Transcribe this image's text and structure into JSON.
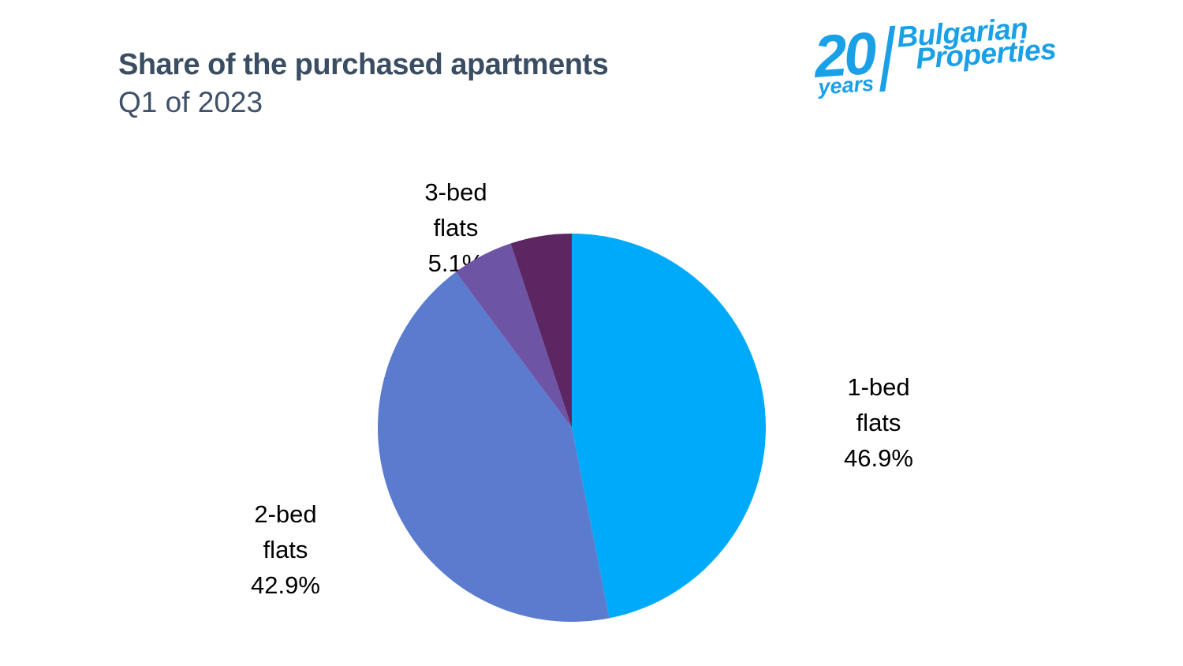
{
  "header": {
    "title": "Share of the purchased apartments",
    "subtitle": "Q1 of 2023",
    "title_color": "#3a4d63"
  },
  "logo": {
    "years_number": "20",
    "years_word": "years",
    "brand_line1": "Bulgarian",
    "brand_line2": "Properties",
    "color": "#1aa0e6"
  },
  "chart_data": {
    "type": "pie",
    "title": "Share of the purchased apartments",
    "subtitle": "Q1 of 2023",
    "start_angle_deg": 0,
    "direction": "clockwise",
    "legend": "none",
    "categories": [
      "1-bed flats",
      "2-bed flats",
      "3-bed flats",
      "unlabeled remainder"
    ],
    "values_pct": [
      46.9,
      42.9,
      5.1,
      5.1
    ],
    "slices": [
      {
        "category": "1-bed flats",
        "value_pct": 46.9,
        "color": "#00aafb",
        "label": "1-bed\nflats\n46.9%"
      },
      {
        "category": "2-bed flats",
        "value_pct": 42.9,
        "color": "#5b7bce",
        "label": "2-bed\nflats\n42.9%"
      },
      {
        "category": "3-bed flats",
        "value_pct": 5.1,
        "color": "#6e54a5",
        "label": "3-bed\nflats\n5.1%"
      },
      {
        "category": "unlabeled remainder",
        "value_pct": 5.1,
        "color": "#5c2663",
        "label": ""
      }
    ]
  }
}
